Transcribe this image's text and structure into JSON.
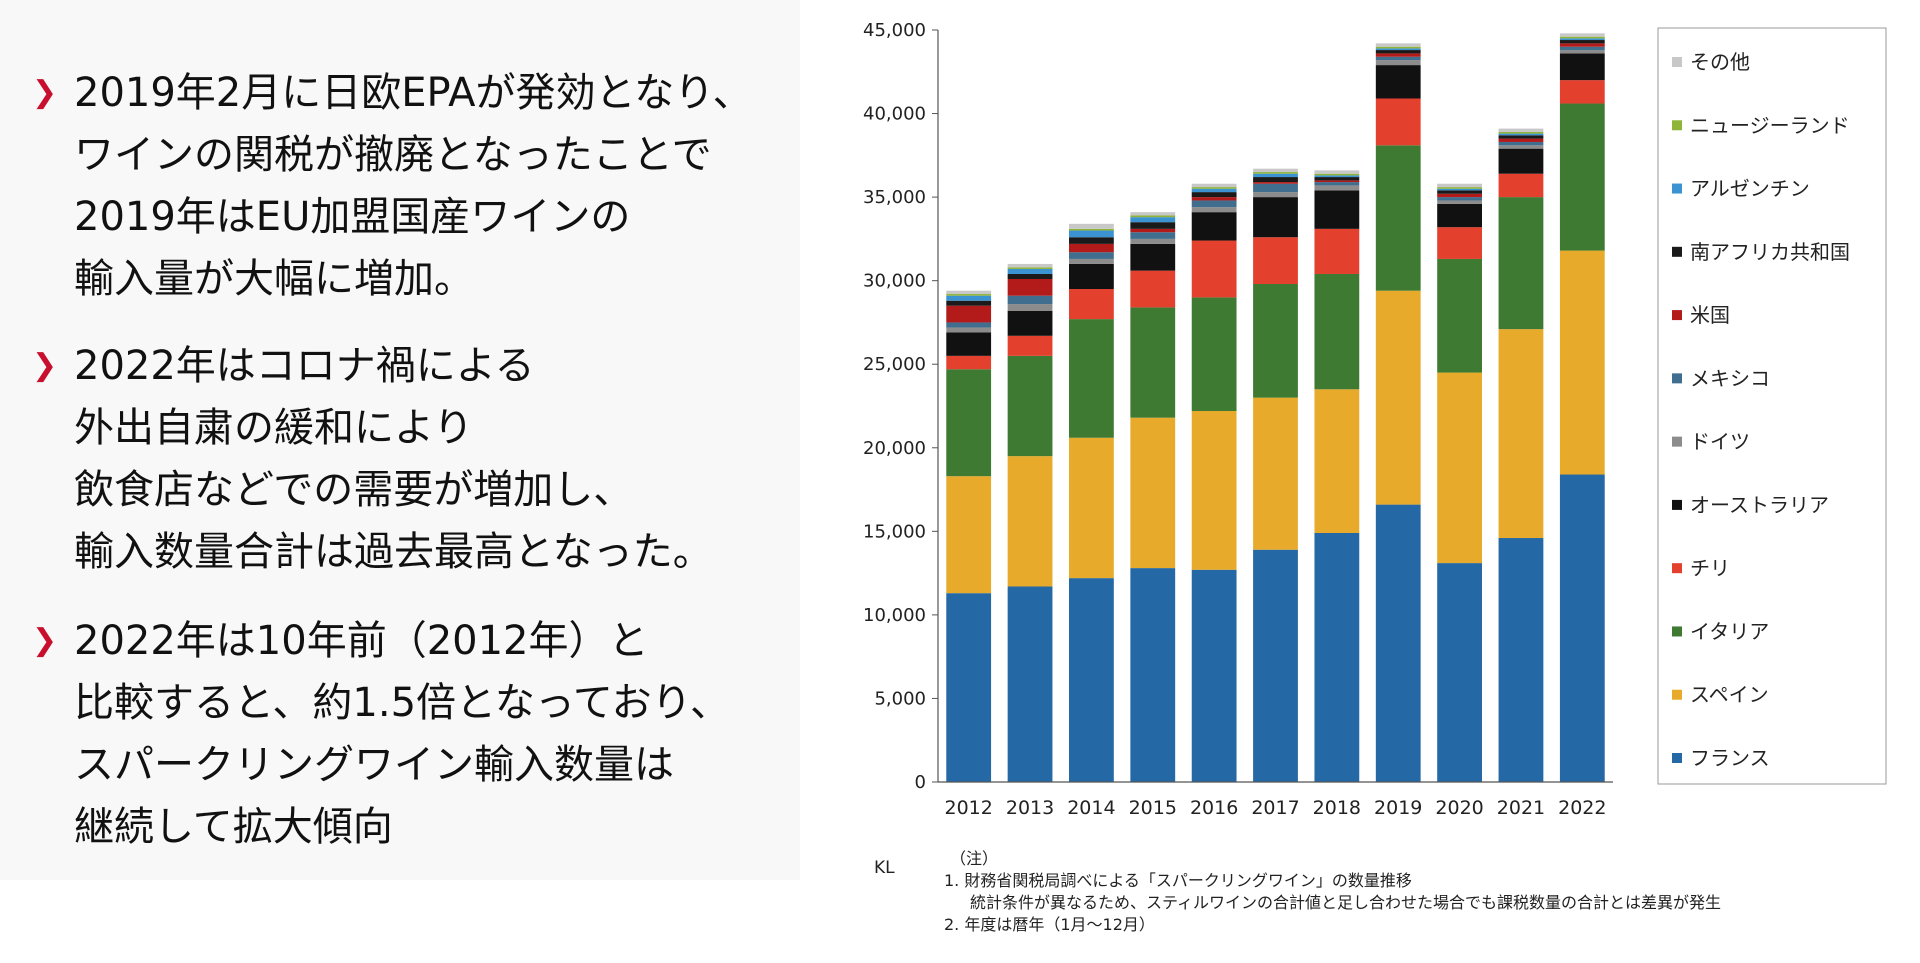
{
  "bullets": [
    {
      "lines": [
        "2019年2月に日欧EPAが発効となり、",
        "ワインの関税が撤廃となったことで",
        "2019年はEU加盟国産ワインの",
        "輸入量が大幅に増加。"
      ]
    },
    {
      "lines": [
        "2022年はコロナ禍による",
        "外出自粛の緩和により",
        "飲食店などでの需要が増加し、",
        "輸入数量合計は過去最高となった。"
      ]
    },
    {
      "lines": [
        "2022年は10年前（2012年）と",
        "比較すると、約1.5倍となっており、",
        "スパークリングワイン輸入数量は",
        "継続して拡大傾向"
      ]
    }
  ],
  "chart_data": {
    "type": "bar",
    "stacked": true,
    "title": "",
    "xlabel": "",
    "ylabel": "KL",
    "ylim": [
      0,
      45000
    ],
    "yticks": [
      0,
      5000,
      10000,
      15000,
      20000,
      25000,
      30000,
      35000,
      40000,
      45000
    ],
    "ytick_labels": [
      "0",
      "5,000",
      "10,000",
      "15,000",
      "20,000",
      "25,000",
      "30,000",
      "35,000",
      "40,000",
      "45,000"
    ],
    "grid": false,
    "legend_position": "right",
    "categories": [
      "2012",
      "2013",
      "2014",
      "2015",
      "2016",
      "2017",
      "2018",
      "2019",
      "2020",
      "2021",
      "2022"
    ],
    "series": [
      {
        "name": "フランス",
        "color": "#2468a6",
        "values": [
          11300,
          11700,
          12200,
          12800,
          12700,
          13900,
          14900,
          16600,
          13100,
          14600,
          18400
        ]
      },
      {
        "name": "スペイン",
        "color": "#e8aa2b",
        "values": [
          7000,
          7800,
          8400,
          9000,
          9500,
          9100,
          8600,
          12800,
          11400,
          12500,
          13400
        ]
      },
      {
        "name": "イタリア",
        "color": "#3e7a32",
        "values": [
          6400,
          6000,
          7100,
          6600,
          6800,
          6800,
          6900,
          8700,
          6800,
          7900,
          8800
        ]
      },
      {
        "name": "チリ",
        "color": "#e3402e",
        "values": [
          800,
          1200,
          1800,
          2200,
          3400,
          2800,
          2700,
          2800,
          1900,
          1400,
          1400
        ]
      },
      {
        "name": "オーストラリア",
        "color": "#111111",
        "values": [
          1400,
          1500,
          1500,
          1600,
          1700,
          2400,
          2300,
          2000,
          1400,
          1500,
          1600
        ]
      },
      {
        "name": "ドイツ",
        "color": "#8c8c8c",
        "values": [
          300,
          400,
          300,
          300,
          300,
          300,
          300,
          300,
          200,
          200,
          200
        ]
      },
      {
        "name": "メキシコ",
        "color": "#3f6e8f",
        "values": [
          300,
          500,
          400,
          400,
          400,
          500,
          200,
          200,
          200,
          200,
          200
        ]
      },
      {
        "name": "米国",
        "color": "#b31b1b",
        "values": [
          1000,
          1000,
          500,
          200,
          200,
          100,
          100,
          200,
          200,
          200,
          200
        ]
      },
      {
        "name": "南アフリカ共和国",
        "color": "#1a1a1a",
        "values": [
          300,
          300,
          400,
          400,
          300,
          300,
          200,
          200,
          200,
          200,
          200
        ]
      },
      {
        "name": "アルゼンチン",
        "color": "#3c93d1",
        "values": [
          300,
          300,
          400,
          300,
          200,
          200,
          100,
          100,
          100,
          100,
          100
        ]
      },
      {
        "name": "ニュージーランド",
        "color": "#8fb43a",
        "values": [
          100,
          100,
          100,
          100,
          100,
          100,
          100,
          100,
          100,
          100,
          100
        ]
      },
      {
        "name": "その他",
        "color": "#c8c8c8",
        "values": [
          200,
          200,
          300,
          200,
          200,
          200,
          200,
          200,
          200,
          200,
          200
        ]
      }
    ]
  },
  "notes": {
    "unit": "KL",
    "head": "（注）",
    "line1": "1.  財務省関税局調べによる「スパークリングワイン」の数量推移",
    "line1_sub": "統計条件が異なるため、スティルワインの合計値と足し合わせた場合でも課税数量の合計とは差異が発生",
    "line2": "2.  年度は暦年（1月～12月）"
  }
}
